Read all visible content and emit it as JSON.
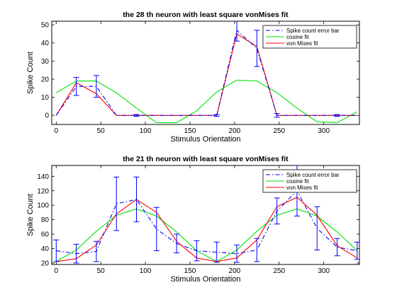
{
  "chart_data": [
    {
      "type": "line",
      "title": "the 28 th neuron with least square vonMises fit",
      "xlabel": "Stimulus Orientation",
      "ylabel": "Spike Count",
      "xlim": [
        -5,
        340
      ],
      "ylim": [
        -5,
        52
      ],
      "xticks": [
        0,
        50,
        100,
        150,
        200,
        250,
        300
      ],
      "yticks": [
        0,
        10,
        20,
        30,
        40,
        50
      ],
      "grid": false,
      "legend_position": "top-right",
      "x": [
        0,
        22.5,
        45,
        67.5,
        90,
        112.5,
        135,
        157.5,
        180,
        202.5,
        225,
        247.5,
        270,
        292.5,
        315,
        337.5
      ],
      "series": [
        {
          "name": "Spike count error bar",
          "style": "dash-dot",
          "color": "#0000ff",
          "values": [
            0,
            16,
            16,
            0,
            0,
            0,
            0,
            0,
            0,
            47,
            37,
            0,
            0,
            0,
            0,
            0
          ],
          "errors": [
            0,
            5,
            6,
            0,
            0.5,
            0,
            0,
            0,
            0.5,
            6,
            10,
            1,
            0,
            0,
            0.5,
            0
          ]
        },
        {
          "name": "cosine fit",
          "style": "solid",
          "color": "#00e000",
          "values": [
            12.5,
            19,
            19,
            12.5,
            4,
            -4,
            -4,
            2.5,
            13,
            19.5,
            19,
            12.5,
            4,
            -3.5,
            -4,
            2
          ]
        },
        {
          "name": "von Mises fit",
          "style": "solid",
          "color": "#ff0000",
          "values": [
            0,
            18,
            12,
            0,
            0,
            0,
            0,
            0,
            0,
            45,
            38,
            0,
            0,
            0,
            0,
            0
          ]
        }
      ]
    },
    {
      "type": "line",
      "title": "the 21 th neuron with least square vonMises fit",
      "xlabel": "Stimulus Orientation",
      "ylabel": "Spike Count",
      "xlim": [
        -5,
        340
      ],
      "ylim": [
        18,
        155
      ],
      "xticks": [
        0,
        50,
        100,
        150,
        200,
        250,
        300
      ],
      "yticks": [
        20,
        40,
        60,
        80,
        100,
        120,
        140
      ],
      "grid": false,
      "legend_position": "top-right",
      "x": [
        0,
        22.5,
        45,
        67.5,
        90,
        112.5,
        135,
        157.5,
        180,
        202.5,
        225,
        247.5,
        270,
        292.5,
        315,
        337.5
      ],
      "series": [
        {
          "name": "Spike count error bar",
          "style": "dash-dot",
          "color": "#0000ff",
          "values": [
            37,
            33,
            36,
            102,
            108,
            67,
            47,
            37,
            35,
            33,
            38,
            92,
            120,
            68,
            42,
            37
          ],
          "errors": [
            15,
            13,
            14,
            37,
            31,
            30,
            13,
            14,
            14,
            12,
            16,
            18,
            35,
            30,
            12,
            12
          ]
        },
        {
          "name": "cosine fit",
          "style": "solid",
          "color": "#00e000",
          "values": [
            22,
            38,
            64,
            86,
            95,
            85,
            63,
            37,
            22,
            38,
            64,
            86,
            95,
            85,
            63,
            37
          ]
        },
        {
          "name": "von Mises fit",
          "style": "solid",
          "color": "#ff0000",
          "values": [
            22,
            26,
            45,
            88,
            108,
            90,
            50,
            27,
            22,
            27,
            52,
            98,
            111,
            86,
            44,
            27
          ]
        }
      ]
    }
  ]
}
